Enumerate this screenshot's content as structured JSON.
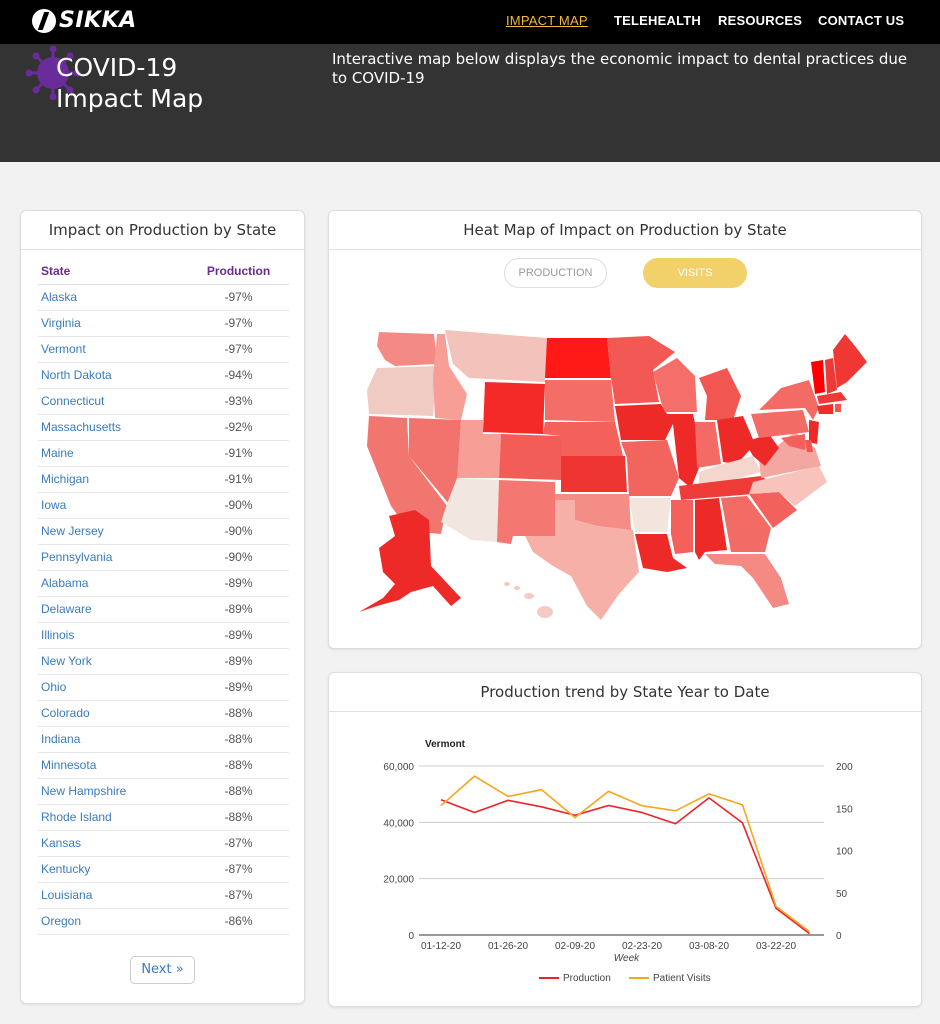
{
  "brand": {
    "name": "SIKKA"
  },
  "nav": {
    "items": [
      {
        "label": "IMPACT MAP",
        "active": true
      },
      {
        "label": "TELEHEALTH",
        "active": false
      },
      {
        "label": "RESOURCES",
        "active": false
      },
      {
        "label": "CONTACT US",
        "active": false
      }
    ]
  },
  "hero": {
    "title_line1": "COVID-19",
    "title_line2": "Impact Map",
    "description": "Interactive map below displays the economic impact to dental practices due to COVID-19",
    "icon": "virus-icon"
  },
  "left_panel": {
    "title": "Impact on Production by State",
    "columns": [
      "State",
      "Production"
    ],
    "rows": [
      {
        "state": "Alaska",
        "value": "-97%"
      },
      {
        "state": "Virginia",
        "value": "-97%"
      },
      {
        "state": "Vermont",
        "value": "-97%"
      },
      {
        "state": "North Dakota",
        "value": "-94%"
      },
      {
        "state": "Connecticut",
        "value": "-93%"
      },
      {
        "state": "Massachusetts",
        "value": "-92%"
      },
      {
        "state": "Maine",
        "value": "-91%"
      },
      {
        "state": "Michigan",
        "value": "-91%"
      },
      {
        "state": "Iowa",
        "value": "-90%"
      },
      {
        "state": "New Jersey",
        "value": "-90%"
      },
      {
        "state": "Pennsylvania",
        "value": "-90%"
      },
      {
        "state": "Alabama",
        "value": "-89%"
      },
      {
        "state": "Delaware",
        "value": "-89%"
      },
      {
        "state": "Illinois",
        "value": "-89%"
      },
      {
        "state": "New York",
        "value": "-89%"
      },
      {
        "state": "Ohio",
        "value": "-89%"
      },
      {
        "state": "Colorado",
        "value": "-88%"
      },
      {
        "state": "Indiana",
        "value": "-88%"
      },
      {
        "state": "Minnesota",
        "value": "-88%"
      },
      {
        "state": "New Hampshire",
        "value": "-88%"
      },
      {
        "state": "Rhode Island",
        "value": "-88%"
      },
      {
        "state": "Kansas",
        "value": "-87%"
      },
      {
        "state": "Kentucky",
        "value": "-87%"
      },
      {
        "state": "Louisiana",
        "value": "-87%"
      },
      {
        "state": "Oregon",
        "value": "-86%"
      }
    ],
    "next_label": "Next »"
  },
  "map_panel": {
    "title": "Heat Map of Impact on Production by State",
    "toggle_production": "PRODUCTION",
    "toggle_visits": "VISITS",
    "selected": "VISITS"
  },
  "trend_panel": {
    "title": "Production trend by State Year to Date",
    "chart_data": {
      "type": "line",
      "title": "Vermont",
      "xlabel": "Week",
      "x_tick_labels": [
        "01-12-20",
        "01-26-20",
        "02-09-20",
        "02-23-20",
        "03-08-20",
        "03-22-20"
      ],
      "x": [
        "01-12-20",
        "01-19-20",
        "01-26-20",
        "02-02-20",
        "02-09-20",
        "02-16-20",
        "02-23-20",
        "03-01-20",
        "03-08-20",
        "03-15-20",
        "03-22-20",
        "03-29-20"
      ],
      "y_left": {
        "ticks": [
          0,
          20000,
          40000,
          60000
        ],
        "tick_labels": [
          "0",
          "20,000",
          "40,000",
          "60,000"
        ],
        "range": [
          0,
          60000
        ]
      },
      "y_right": {
        "ticks": [
          0,
          50,
          100,
          150,
          200
        ],
        "tick_labels": [
          "0",
          "50",
          "100",
          "150",
          "200"
        ],
        "range": [
          0,
          200
        ]
      },
      "series": [
        {
          "name": "Production",
          "axis": "left",
          "color": "#e8252b",
          "values": [
            48000,
            43500,
            47800,
            45500,
            42500,
            46000,
            43500,
            39500,
            48700,
            39800,
            9500,
            500
          ]
        },
        {
          "name": "Patient Visits",
          "axis": "right",
          "color": "#f5a623",
          "values": [
            153,
            188,
            164,
            172,
            139,
            170,
            153,
            147,
            167,
            154,
            34,
            4
          ]
        }
      ],
      "legend": "bottom",
      "grid": true
    }
  }
}
